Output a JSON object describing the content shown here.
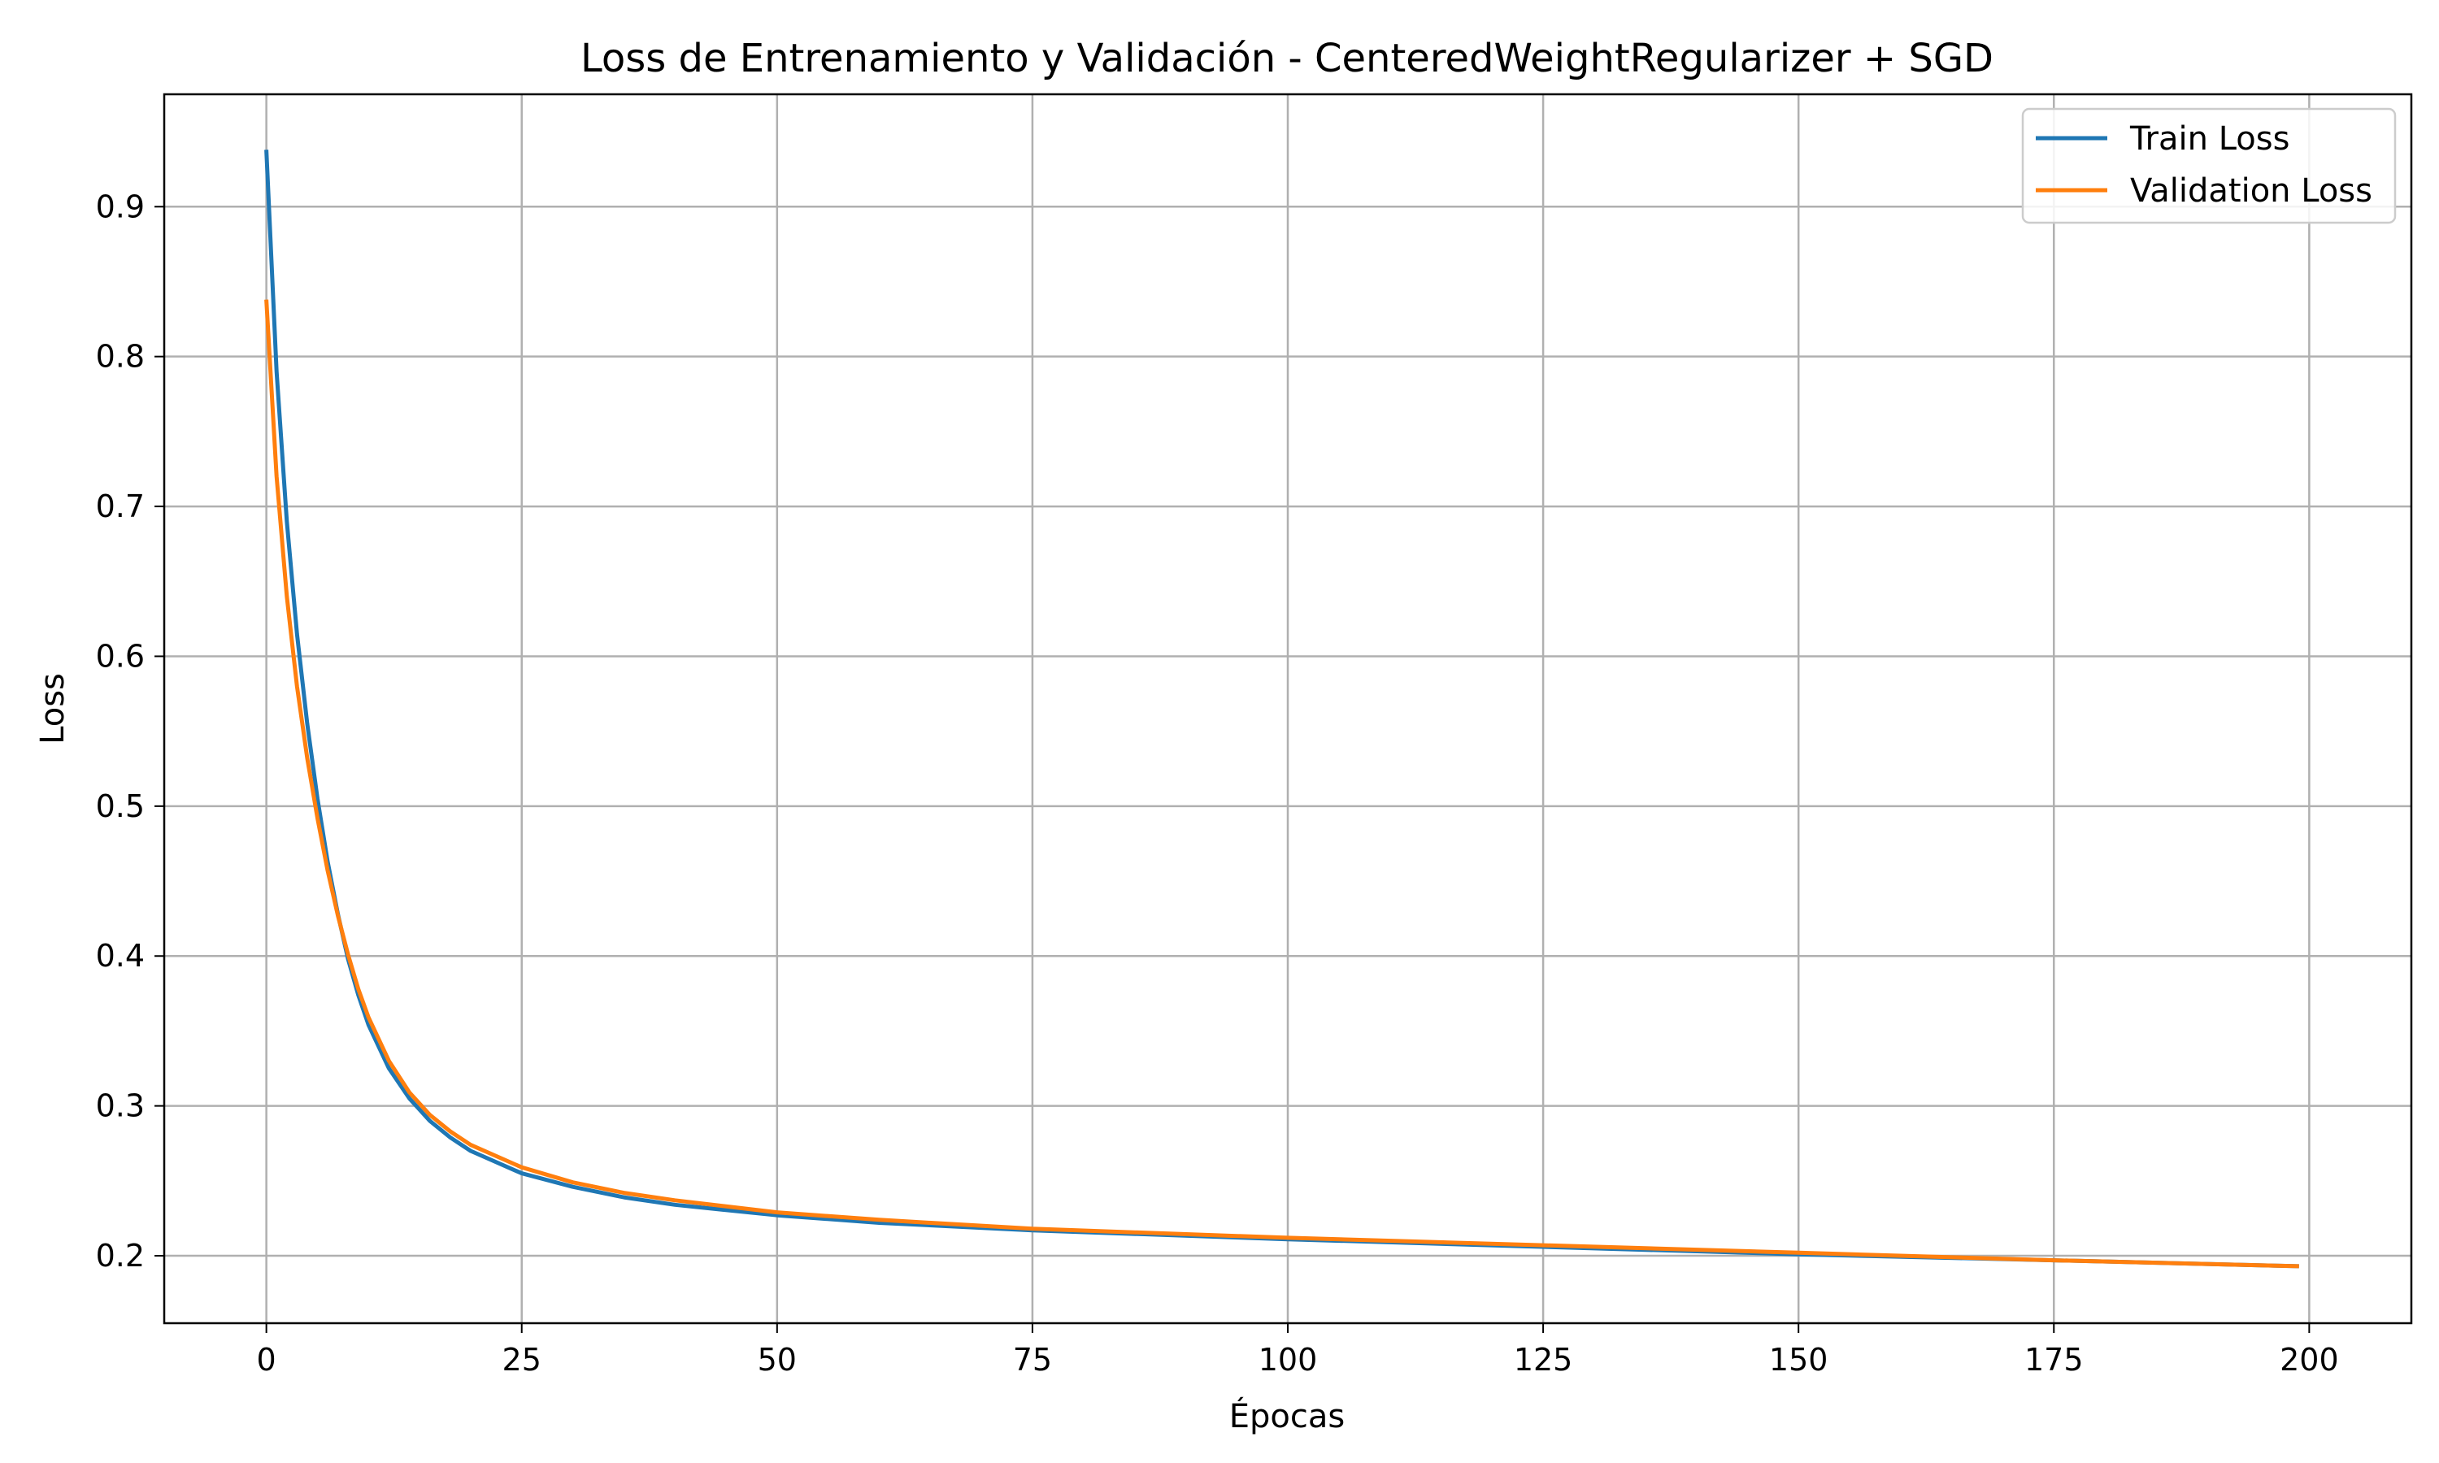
{
  "chart_data": {
    "type": "line",
    "title": "Loss de Entrenamiento y Validación - CenteredWeightRegularizer + SGD",
    "xlabel": "Épocas",
    "ylabel": "Loss",
    "xlim": [
      -10,
      210
    ],
    "ylim": [
      0.155,
      0.975
    ],
    "xticks": [
      0,
      25,
      50,
      75,
      100,
      125,
      150,
      175,
      200
    ],
    "yticks": [
      0.2,
      0.3,
      0.4,
      0.5,
      0.6,
      0.7,
      0.8,
      0.9
    ],
    "grid": true,
    "legend_position": "top-right",
    "series": [
      {
        "name": "Train Loss",
        "color": "#1f77b4",
        "x": [
          0,
          1,
          2,
          3,
          4,
          5,
          6,
          7,
          8,
          9,
          10,
          12,
          14,
          16,
          18,
          20,
          25,
          30,
          35,
          40,
          50,
          60,
          75,
          100,
          125,
          150,
          175,
          199
        ],
        "y": [
          0.938,
          0.79,
          0.69,
          0.615,
          0.555,
          0.505,
          0.463,
          0.428,
          0.398,
          0.374,
          0.354,
          0.325,
          0.305,
          0.29,
          0.279,
          0.27,
          0.255,
          0.246,
          0.239,
          0.234,
          0.227,
          0.222,
          0.217,
          0.211,
          0.206,
          0.201,
          0.197,
          0.193
        ]
      },
      {
        "name": "Validation Loss",
        "color": "#ff7f0e",
        "x": [
          0,
          1,
          2,
          3,
          4,
          5,
          6,
          7,
          8,
          9,
          10,
          12,
          14,
          16,
          18,
          20,
          25,
          30,
          35,
          40,
          50,
          60,
          75,
          100,
          125,
          150,
          175,
          199
        ],
        "y": [
          0.838,
          0.72,
          0.64,
          0.58,
          0.532,
          0.492,
          0.457,
          0.427,
          0.401,
          0.378,
          0.359,
          0.33,
          0.309,
          0.294,
          0.283,
          0.274,
          0.259,
          0.249,
          0.242,
          0.237,
          0.229,
          0.224,
          0.218,
          0.212,
          0.207,
          0.202,
          0.197,
          0.193
        ]
      }
    ]
  }
}
